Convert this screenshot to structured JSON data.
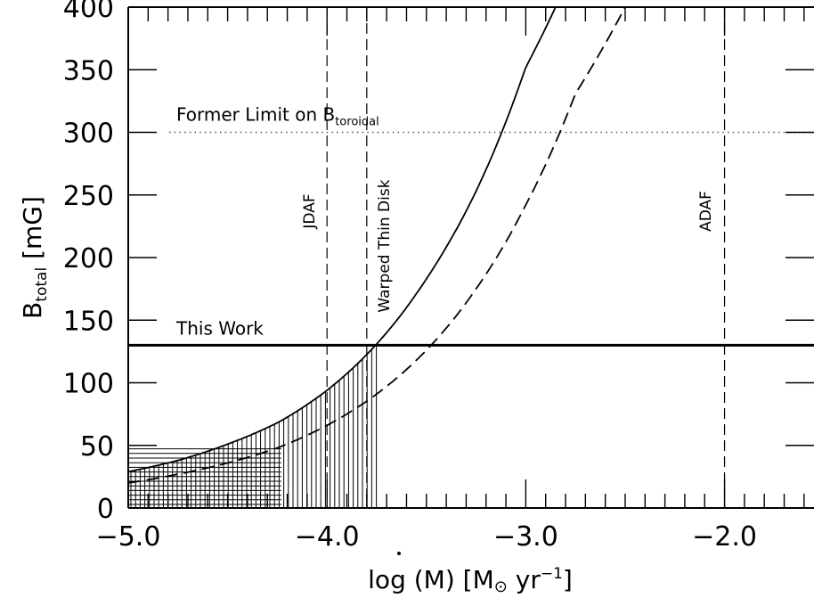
{
  "chart_data": {
    "type": "line",
    "xlabel": {
      "prefix": "log (",
      "variable": "M",
      "middle": ") [M",
      "sub": "⊙",
      "unit": " yr",
      "sup": "−1",
      "suffix": "]"
    },
    "ylabel": {
      "main": "B",
      "sub": "total",
      "unit": " [mG]"
    },
    "xlim": [
      -5.0,
      -1.55
    ],
    "ylim": [
      0,
      400
    ],
    "x_ticks": [
      -5.0,
      -4.0,
      -3.0,
      -2.0
    ],
    "x_tick_labels": [
      "−5.0",
      "−4.0",
      "−3.0",
      "−2.0"
    ],
    "y_ticks": [
      0,
      50,
      100,
      150,
      200,
      250,
      300,
      350,
      400
    ],
    "y_tick_labels": [
      "0",
      "50",
      "100",
      "150",
      "200",
      "250",
      "300",
      "350",
      "400"
    ],
    "series": [
      {
        "style": "solid",
        "x": [
          -5.0,
          -4.75,
          -4.5,
          -4.25,
          -4.0,
          -3.75,
          -3.5,
          -3.25,
          -3.0,
          -2.85,
          -2.7
        ],
        "y": [
          29,
          38,
          51,
          68,
          94,
          131,
          183,
          253,
          352,
          400,
          470
        ]
      },
      {
        "style": "dashed",
        "x": [
          -5.0,
          -4.75,
          -4.5,
          -4.25,
          -4.0,
          -3.75,
          -3.5,
          -3.25,
          -3.0,
          -2.75,
          -2.5,
          -2.4
        ],
        "y": [
          20,
          27,
          36,
          48,
          66,
          91,
          126,
          175,
          242,
          331,
          400,
          430
        ]
      }
    ],
    "vertical_lines": [
      {
        "x": -4.0,
        "label": "JDAF"
      },
      {
        "x": -3.8,
        "label": "Warped Thin Disk"
      },
      {
        "x": -2.0,
        "label": "ADAF"
      }
    ],
    "horizontal_lines": [
      {
        "y": 130,
        "style": "thick",
        "label": "This Work"
      },
      {
        "y": 300,
        "style": "dotted",
        "label": "Former Limit on B",
        "label_sub": "toroidal"
      }
    ],
    "shaded_regions": [
      {
        "pattern": "vertical-hatch",
        "x_range": [
          -5.0,
          -3.74
        ]
      },
      {
        "pattern": "grid-hatch",
        "x_range": [
          -5.0,
          -4.23
        ],
        "y_range": [
          0,
          50
        ]
      }
    ]
  }
}
